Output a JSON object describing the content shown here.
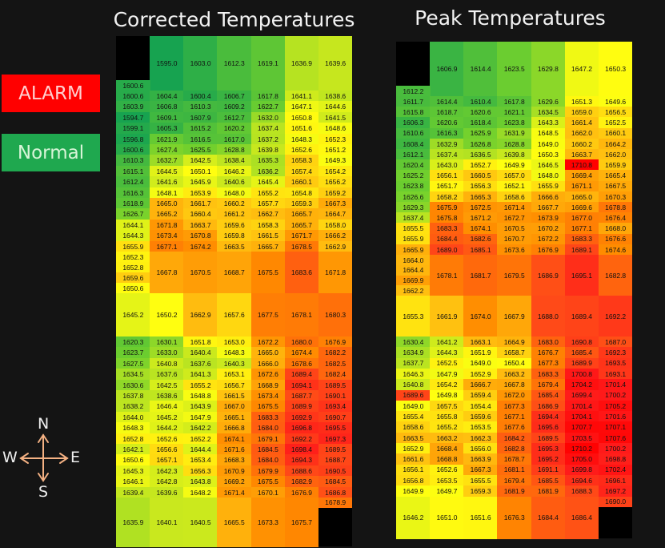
{
  "legend": {
    "alarm_label": "ALARM",
    "alarm_color": "#ff0000",
    "normal_label": "Normal",
    "normal_color": "#1fa84f"
  },
  "compass": {
    "north": "N",
    "south": "S",
    "east": "E",
    "west": "W",
    "arrow_color": "#f4b183"
  },
  "color_scale": {
    "stops": [
      [
        1595,
        "#17a350"
      ],
      [
        1625,
        "#6fcf2e"
      ],
      [
        1640,
        "#c8e81e"
      ],
      [
        1650,
        "#ffff10"
      ],
      [
        1662,
        "#ffc010"
      ],
      [
        1675,
        "#ff8a00"
      ],
      [
        1688,
        "#ff4a18"
      ],
      [
        1700,
        "#ff1a1a"
      ],
      [
        1711,
        "#ff0000"
      ]
    ]
  },
  "grids": [
    {
      "title": "Corrected Temperatures",
      "header": [
        "1595.0",
        "1603.0",
        "1612.3",
        "1619.1",
        "1636.9",
        "1639.6"
      ],
      "top_single": "1600.6",
      "rows_upper": [
        [
          "1600.6",
          "1604.4",
          "1600.4",
          "1606.7",
          "1617.8",
          "1641.1",
          "1638.6"
        ],
        [
          "1603.9",
          "1606.8",
          "1610.3",
          "1609.2",
          "1622.7",
          "1647.1",
          "1644.6"
        ],
        [
          "1594.7",
          "1609.1",
          "1607.9",
          "1612.7",
          "1632.0",
          "1650.8",
          "1641.5"
        ],
        [
          "1599.1",
          "1605.3",
          "1615.2",
          "1620.2",
          "1637.4",
          "1651.6",
          "1648.6"
        ],
        [
          "1596.8",
          "1621.9",
          "1616.5",
          "1617.0",
          "1637.2",
          "1648.3",
          "1652.3"
        ],
        [
          "1600.6",
          "1627.4",
          "1625.5",
          "1628.8",
          "1639.8",
          "1652.6",
          "1651.2"
        ],
        [
          "1610.3",
          "1632.7",
          "1642.5",
          "1638.4",
          "1635.3",
          "1658.3",
          "1649.3"
        ],
        [
          "1615.1",
          "1644.5",
          "1650.1",
          "1646.2",
          "1636.2",
          "1657.4",
          "1654.2"
        ],
        [
          "1612.4",
          "1641.6",
          "1645.9",
          "1640.6",
          "1645.4",
          "1660.1",
          "1656.2"
        ],
        [
          "1616.3",
          "1648.1",
          "1653.9",
          "1648.0",
          "1655.2",
          "1654.8",
          "1659.2"
        ],
        [
          "1618.9",
          "1665.0",
          "1661.7",
          "1660.2",
          "1657.7",
          "1659.3",
          "1667.3"
        ],
        [
          "1626.7",
          "1665.2",
          "1660.4",
          "1661.2",
          "1662.7",
          "1665.7",
          "1664.7"
        ],
        [
          "1644.1",
          "1671.8",
          "1663.7",
          "1659.6",
          "1658.3",
          "1665.7",
          "1658.0"
        ],
        [
          "1644.3",
          "1673.4",
          "1670.8",
          "1659.8",
          "1661.5",
          "1671.7",
          "1666.2"
        ],
        [
          "1655.9",
          "1677.1",
          "1674.2",
          "1663.5",
          "1665.7",
          "1678.5",
          "1662.9"
        ]
      ],
      "block1": {
        "col0": [
          "1652.3",
          "1652.8",
          "1659.6",
          "1650.6"
        ],
        "others": [
          "1667.8",
          "1670.5",
          "1668.7",
          "1675.5",
          "1683.6",
          "1671.8"
        ]
      },
      "block2": [
        "1645.2",
        "1650.2",
        "1662.9",
        "1657.6",
        "1677.5",
        "1678.1",
        "1680.3"
      ],
      "rows_lower": [
        [
          "1620.3",
          "1630.1",
          "1651.8",
          "1653.0",
          "1672.2",
          "1680.0",
          "1676.9"
        ],
        [
          "1623.7",
          "1633.0",
          "1640.4",
          "1648.3",
          "1665.0",
          "1674.4",
          "1682.2"
        ],
        [
          "1627.5",
          "1640.8",
          "1637.6",
          "1640.3",
          "1666.0",
          "1678.6",
          "1682.5"
        ],
        [
          "1634.5",
          "1637.6",
          "1641.3",
          "1653.1",
          "1672.6",
          "1689.4",
          "1682.4"
        ],
        [
          "1630.6",
          "1642.5",
          "1655.2",
          "1656.7",
          "1668.9",
          "1694.1",
          "1689.5"
        ],
        [
          "1637.8",
          "1638.6",
          "1648.8",
          "1661.5",
          "1673.4",
          "1687.7",
          "1690.1"
        ],
        [
          "1638.2",
          "1646.4",
          "1643.9",
          "1667.0",
          "1675.5",
          "1689.9",
          "1693.4"
        ],
        [
          "1644.0",
          "1645.2",
          "1647.9",
          "1665.1",
          "1683.3",
          "1692.9",
          "1690.7"
        ],
        [
          "1648.3",
          "1644.2",
          "1642.2",
          "1666.8",
          "1684.0",
          "1696.8",
          "1695.5"
        ],
        [
          "1652.8",
          "1652.6",
          "1652.2",
          "1674.1",
          "1679.1",
          "1692.2",
          "1697.3"
        ],
        [
          "1642.1",
          "1656.6",
          "1644.4",
          "1671.6",
          "1684.5",
          "1698.4",
          "1689.5"
        ],
        [
          "1650.6",
          "1657.1",
          "1653.4",
          "1668.3",
          "1684.0",
          "1694.3",
          "1688.7"
        ],
        [
          "1645.3",
          "1642.3",
          "1656.3",
          "1670.9",
          "1679.9",
          "1688.6",
          "1690.5"
        ],
        [
          "1646.1",
          "1642.8",
          "1643.8",
          "1669.2",
          "1675.5",
          "1682.9",
          "1684.5"
        ],
        [
          "1639.4",
          "1639.6",
          "1648.2",
          "1671.4",
          "1670.1",
          "1676.9",
          "1686.8"
        ]
      ],
      "tail": "1678.9",
      "bottom": [
        "1635.9",
        "1640.1",
        "1640.5",
        "1665.5",
        "1673.3",
        "1675.7"
      ]
    },
    {
      "title": "Peak Temperatures",
      "header": [
        "1606.9",
        "1614.4",
        "1623.5",
        "1629.8",
        "1647.2",
        "1650.3"
      ],
      "top_single": "1612.2",
      "rows_upper": [
        [
          "1611.7",
          "1614.4",
          "1610.4",
          "1617.8",
          "1629.6",
          "1651.3",
          "1649.6"
        ],
        [
          "1615.8",
          "1618.7",
          "1620.6",
          "1621.1",
          "1634.5",
          "1659.0",
          "1656.5"
        ],
        [
          "1606.3",
          "1620.6",
          "1618.4",
          "1623.8",
          "1643.3",
          "1661.4",
          "1652.5"
        ],
        [
          "1610.6",
          "1616.3",
          "1625.9",
          "1631.9",
          "1648.5",
          "1662.0",
          "1660.1"
        ],
        [
          "1608.4",
          "1632.9",
          "1626.8",
          "1628.8",
          "1649.0",
          "1660.2",
          "1664.2"
        ],
        [
          "1612.1",
          "1637.4",
          "1636.5",
          "1639.8",
          "1650.3",
          "1663.7",
          "1662.0"
        ],
        [
          "1620.4",
          "1643.0",
          "1652.7",
          "1649.9",
          "1646.5",
          "1710.8",
          "1659.9"
        ],
        [
          "1625.2",
          "1656.1",
          "1660.5",
          "1657.0",
          "1648.0",
          "1669.4",
          "1665.4"
        ],
        [
          "1623.8",
          "1651.7",
          "1656.3",
          "1652.1",
          "1655.9",
          "1671.1",
          "1667.5"
        ],
        [
          "1626.6",
          "1658.2",
          "1665.3",
          "1658.6",
          "1666.6",
          "1665.0",
          "1670.3"
        ],
        [
          "1629.3",
          "1675.9",
          "1672.5",
          "1671.4",
          "1667.7",
          "1669.6",
          "1678.8"
        ],
        [
          "1637.4",
          "1675.8",
          "1671.2",
          "1672.7",
          "1673.9",
          "1677.0",
          "1676.4"
        ],
        [
          "1655.5",
          "1683.3",
          "1674.1",
          "1670.5",
          "1670.2",
          "1677.1",
          "1668.0"
        ],
        [
          "1655.9",
          "1684.4",
          "1682.6",
          "1670.7",
          "1672.2",
          "1683.3",
          "1676.6"
        ],
        [
          "1665.9",
          "1689.0",
          "1685.1",
          "1673.6",
          "1676.9",
          "1689.1",
          "1674.6"
        ]
      ],
      "block1": {
        "col0": [
          "1664.0",
          "1664.4",
          "1669.9",
          "1662.2"
        ],
        "others": [
          "1678.1",
          "1681.7",
          "1679.5",
          "1686.9",
          "1695.1",
          "1682.8"
        ]
      },
      "block2": [
        "1655.3",
        "1661.9",
        "1674.0",
        "1667.9",
        "1688.0",
        "1689.4",
        "1692.2"
      ],
      "rows_lower": [
        [
          "1630.4",
          "1641.2",
          "1663.1",
          "1664.9",
          "1683.0",
          "1690.8",
          "1687.0"
        ],
        [
          "1634.9",
          "1644.3",
          "1651.9",
          "1658.7",
          "1676.7",
          "1685.4",
          "1692.3"
        ],
        [
          "1637.7",
          "1652.5",
          "1649.0",
          "1650.4",
          "1677.3",
          "1689.9",
          "1693.5"
        ],
        [
          "1646.3",
          "1647.9",
          "1652.9",
          "1663.2",
          "1683.3",
          "1700.8",
          "1693.1"
        ],
        [
          "1640.8",
          "1654.2",
          "1666.7",
          "1667.8",
          "1679.4",
          "1704.2",
          "1701.4"
        ],
        [
          "1689.6",
          "1649.8",
          "1659.4",
          "1672.0",
          "1685.4",
          "1699.4",
          "1700.2"
        ],
        [
          "1649.0",
          "1657.5",
          "1654.4",
          "1677.3",
          "1686.9",
          "1701.4",
          "1705.2"
        ],
        [
          "1655.4",
          "1655.8",
          "1659.6",
          "1677.1",
          "1694.4",
          "1704.1",
          "1701.6"
        ],
        [
          "1658.6",
          "1655.2",
          "1653.5",
          "1677.6",
          "1695.6",
          "1707.7",
          "1707.1"
        ],
        [
          "1663.5",
          "1663.2",
          "1662.3",
          "1684.2",
          "1689.5",
          "1703.5",
          "1707.6"
        ],
        [
          "1652.9",
          "1668.4",
          "1656.0",
          "1682.8",
          "1695.3",
          "1710.2",
          "1700.2"
        ],
        [
          "1661.6",
          "1668.8",
          "1663.9",
          "1678.7",
          "1695.2",
          "1705.0",
          "1698.8"
        ],
        [
          "1656.1",
          "1652.6",
          "1667.3",
          "1681.1",
          "1691.1",
          "1699.8",
          "1702.4"
        ],
        [
          "1656.8",
          "1653.5",
          "1655.5",
          "1679.4",
          "1685.5",
          "1694.6",
          "1696.1"
        ],
        [
          "1649.9",
          "1649.7",
          "1659.3",
          "1681.9",
          "1681.9",
          "1688.3",
          "1697.2"
        ]
      ],
      "tail": "1690.0",
      "bottom": [
        "1646.2",
        "1651.0",
        "1651.6",
        "1676.3",
        "1684.4",
        "1686.4"
      ]
    }
  ]
}
